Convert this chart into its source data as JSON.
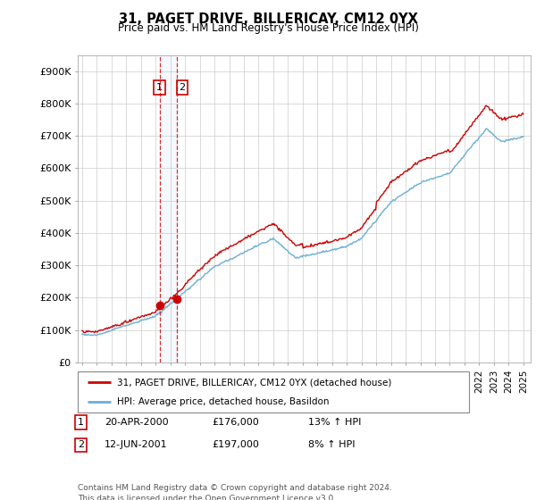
{
  "title": "31, PAGET DRIVE, BILLERICAY, CM12 0YX",
  "subtitle": "Price paid vs. HM Land Registry's House Price Index (HPI)",
  "legend_line1": "31, PAGET DRIVE, BILLERICAY, CM12 0YX (detached house)",
  "legend_line2": "HPI: Average price, detached house, Basildon",
  "transaction1_date": "20-APR-2000",
  "transaction1_price": "£176,000",
  "transaction1_hpi": "13% ↑ HPI",
  "transaction2_date": "12-JUN-2001",
  "transaction2_price": "£197,000",
  "transaction2_hpi": "8% ↑ HPI",
  "footer": "Contains HM Land Registry data © Crown copyright and database right 2024.\nThis data is licensed under the Open Government Licence v3.0.",
  "hpi_color": "#6baed6",
  "price_color": "#cc0000",
  "vline_color": "#cc0000",
  "ylim": [
    0,
    950000
  ],
  "yticks": [
    0,
    100000,
    200000,
    300000,
    400000,
    500000,
    600000,
    700000,
    800000,
    900000
  ],
  "ytick_labels": [
    "£0",
    "£100K",
    "£200K",
    "£300K",
    "£400K",
    "£500K",
    "£600K",
    "£700K",
    "£800K",
    "£900K"
  ],
  "transaction1_year": 2000.3,
  "transaction2_year": 2001.45,
  "transaction1_value": 176000,
  "transaction2_value": 197000,
  "background_color": "#ffffff",
  "grid_color": "#cccccc"
}
